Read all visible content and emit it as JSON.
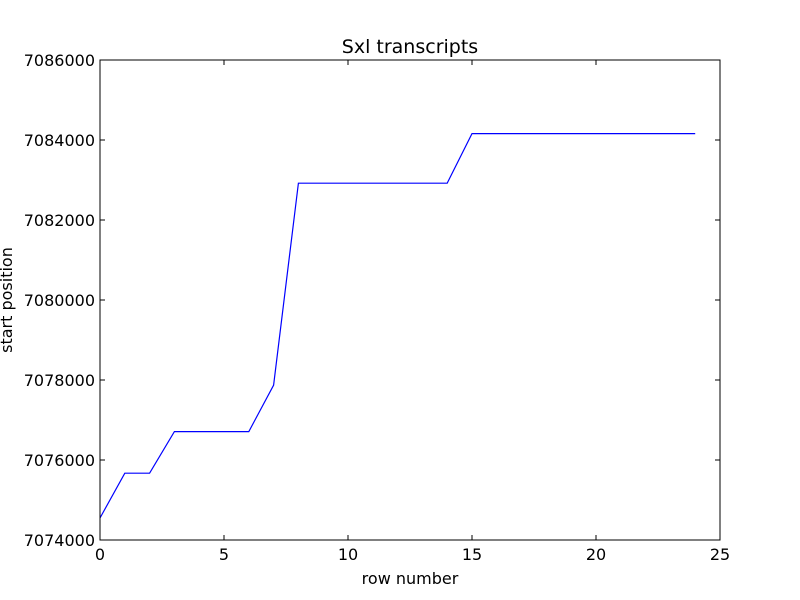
{
  "chart_data": {
    "type": "line",
    "title": "Sxl transcripts",
    "xlabel": "row number",
    "ylabel": "start position",
    "xlim": [
      0,
      25
    ],
    "ylim": [
      7074000,
      7086000
    ],
    "xticks": [
      0,
      5,
      10,
      15,
      20,
      25
    ],
    "yticks": [
      7074000,
      7076000,
      7078000,
      7080000,
      7082000,
      7084000,
      7086000
    ],
    "series": [
      {
        "name": "start position",
        "color": "#0000ff",
        "x": [
          0,
          1,
          2,
          3,
          4,
          5,
          6,
          7,
          8,
          9,
          10,
          11,
          12,
          13,
          14,
          15,
          16,
          17,
          18,
          19,
          20,
          21,
          22,
          23,
          24
        ],
        "y": [
          7074550,
          7075670,
          7075670,
          7076710,
          7076710,
          7076710,
          7076710,
          7077870,
          7082920,
          7082920,
          7082920,
          7082920,
          7082920,
          7082920,
          7082920,
          7084160,
          7084160,
          7084160,
          7084160,
          7084160,
          7084160,
          7084160,
          7084160,
          7084160,
          7084160
        ]
      }
    ]
  }
}
